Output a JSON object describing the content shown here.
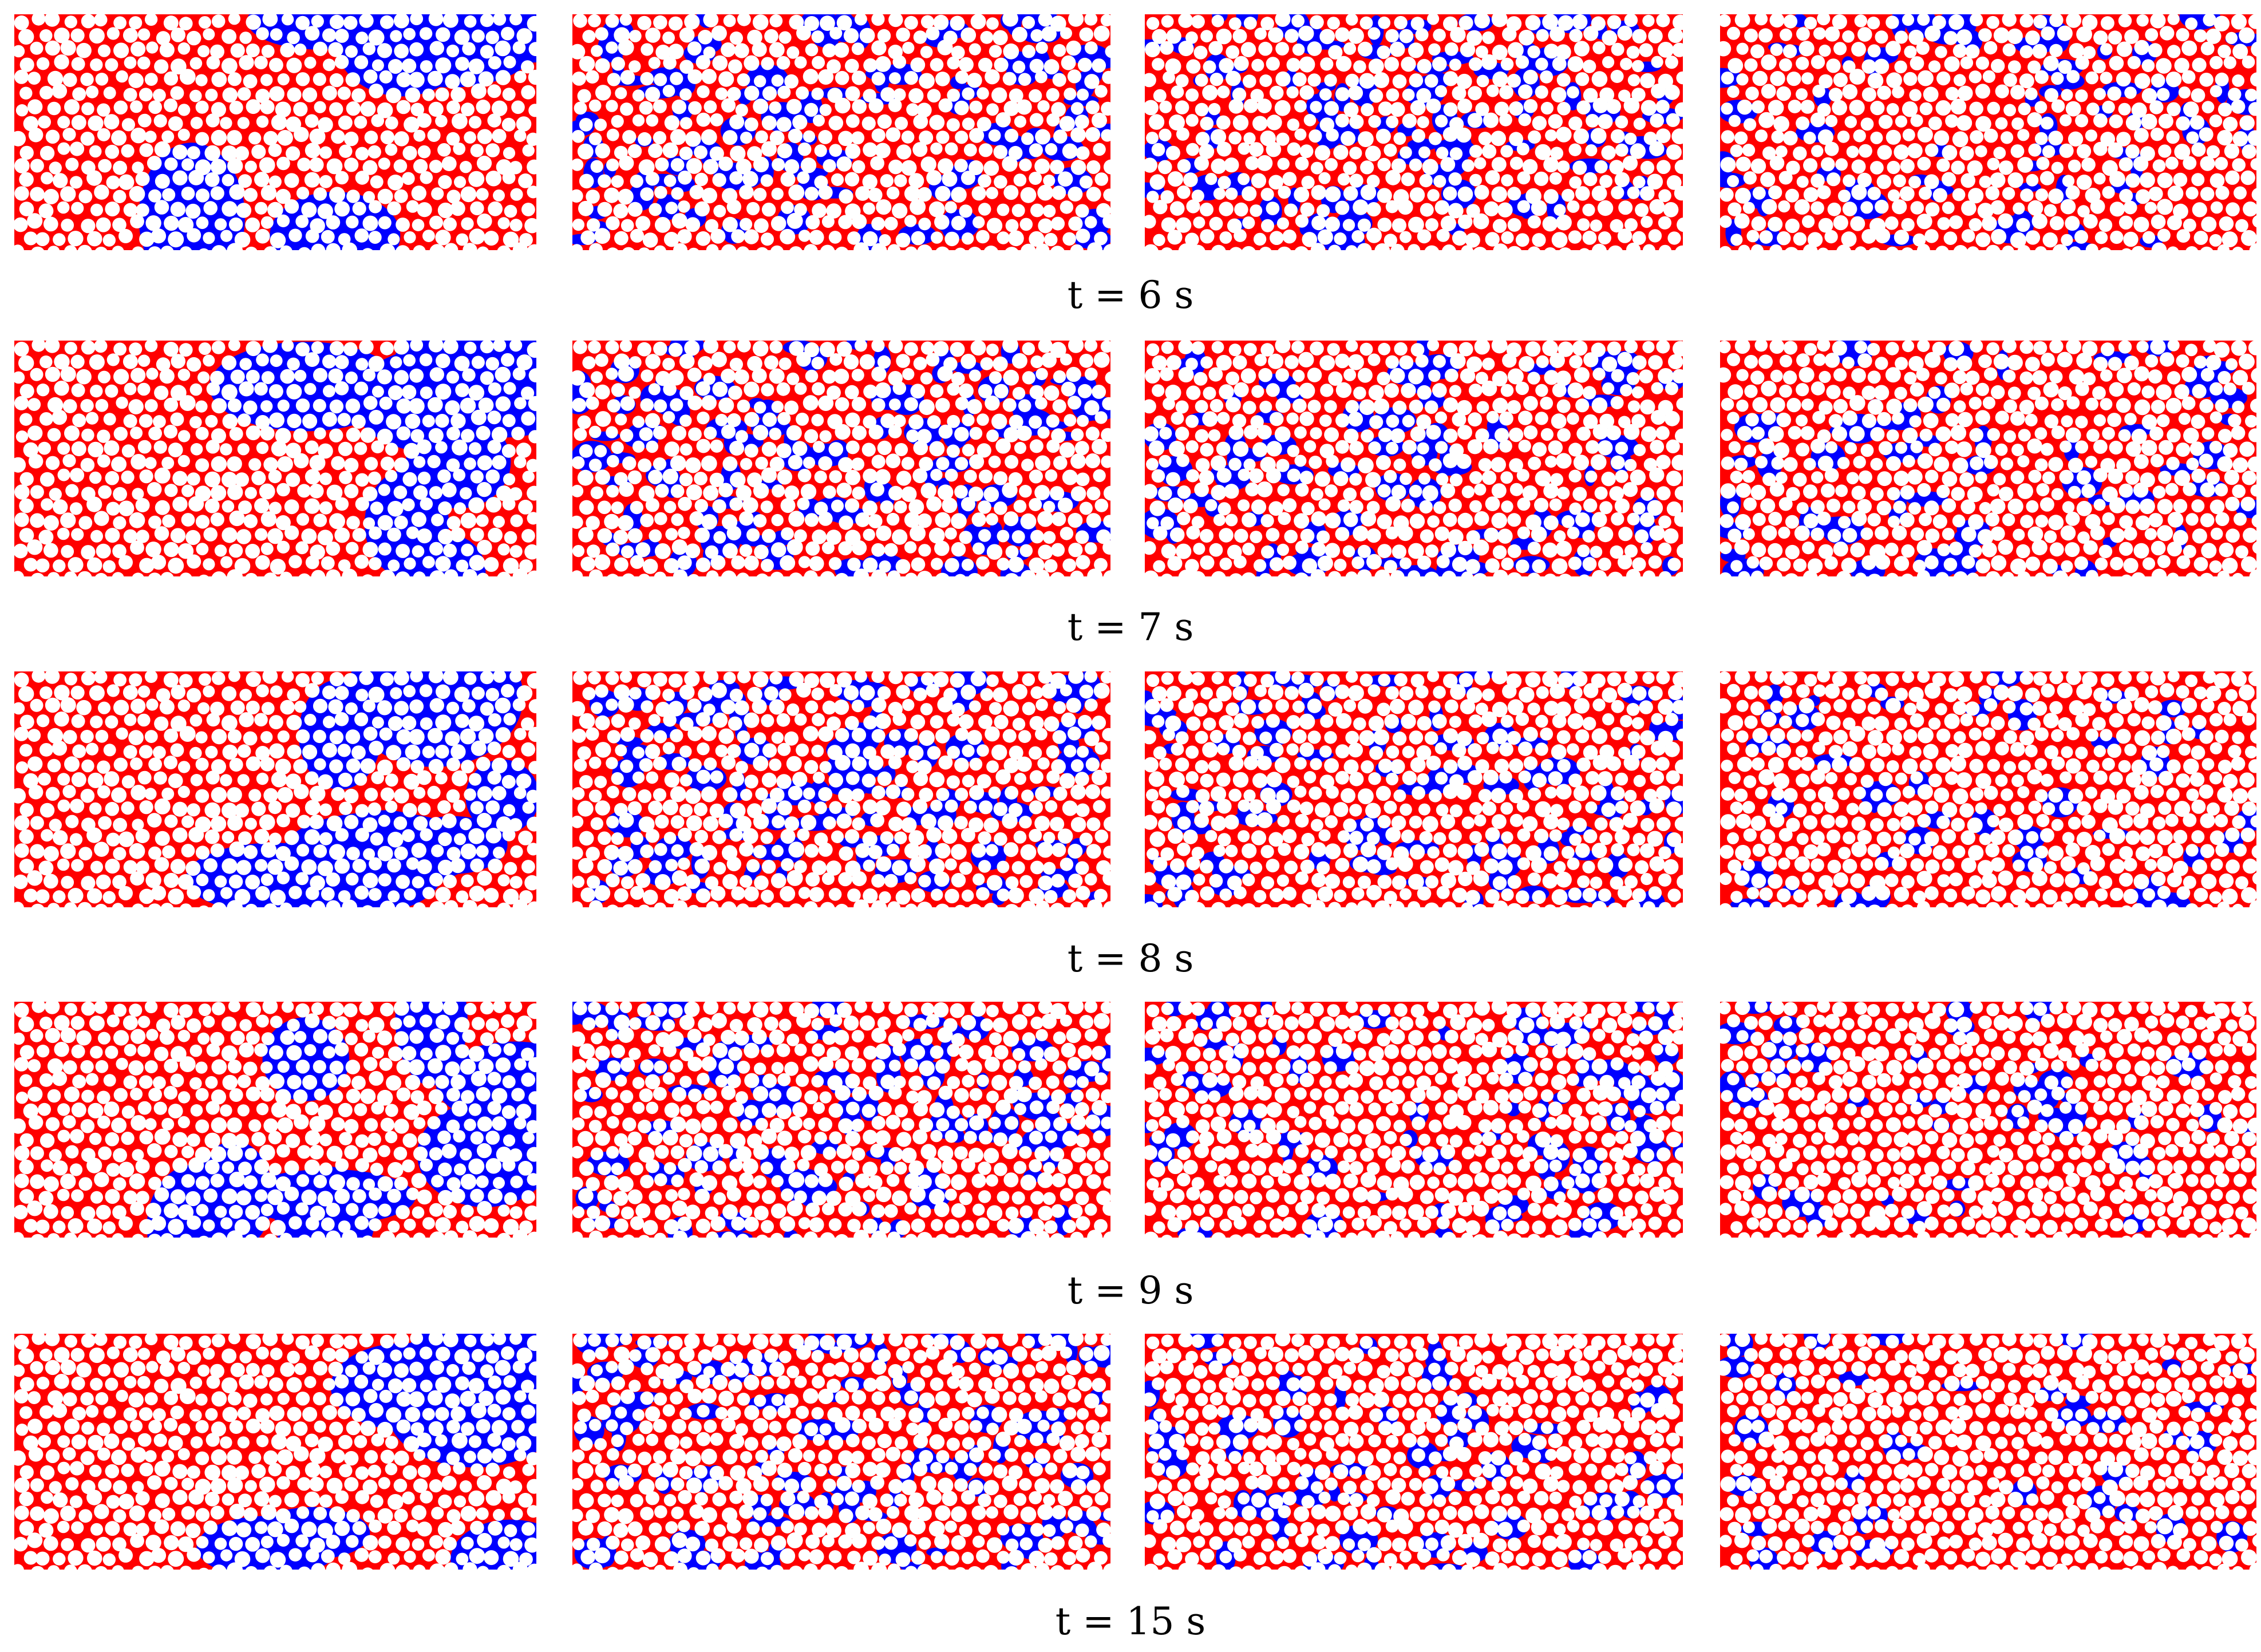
{
  "colors": {
    "oil": "#ff0000",
    "water": "#0000ff",
    "grain": "#ffffff",
    "background": "#ffffff"
  },
  "rows": [
    {
      "label": "t = 6 s",
      "panels": [
        {
          "water_fraction": 0.4
        },
        {
          "water_fraction": 0.28
        },
        {
          "water_fraction": 0.22
        },
        {
          "water_fraction": 0.15
        }
      ]
    },
    {
      "label": "t = 7 s",
      "panels": [
        {
          "water_fraction": 0.4
        },
        {
          "water_fraction": 0.27
        },
        {
          "water_fraction": 0.21
        },
        {
          "water_fraction": 0.16
        }
      ]
    },
    {
      "label": "t = 8 s",
      "panels": [
        {
          "water_fraction": 0.4
        },
        {
          "water_fraction": 0.26
        },
        {
          "water_fraction": 0.2
        },
        {
          "water_fraction": 0.12
        }
      ]
    },
    {
      "label": "t = 9 s",
      "panels": [
        {
          "water_fraction": 0.38
        },
        {
          "water_fraction": 0.25
        },
        {
          "water_fraction": 0.19
        },
        {
          "water_fraction": 0.11
        }
      ]
    },
    {
      "label": "t = 15 s",
      "panels": [
        {
          "water_fraction": 0.36
        },
        {
          "water_fraction": 0.24
        },
        {
          "water_fraction": 0.17
        },
        {
          "water_fraction": 0.1
        }
      ]
    }
  ]
}
